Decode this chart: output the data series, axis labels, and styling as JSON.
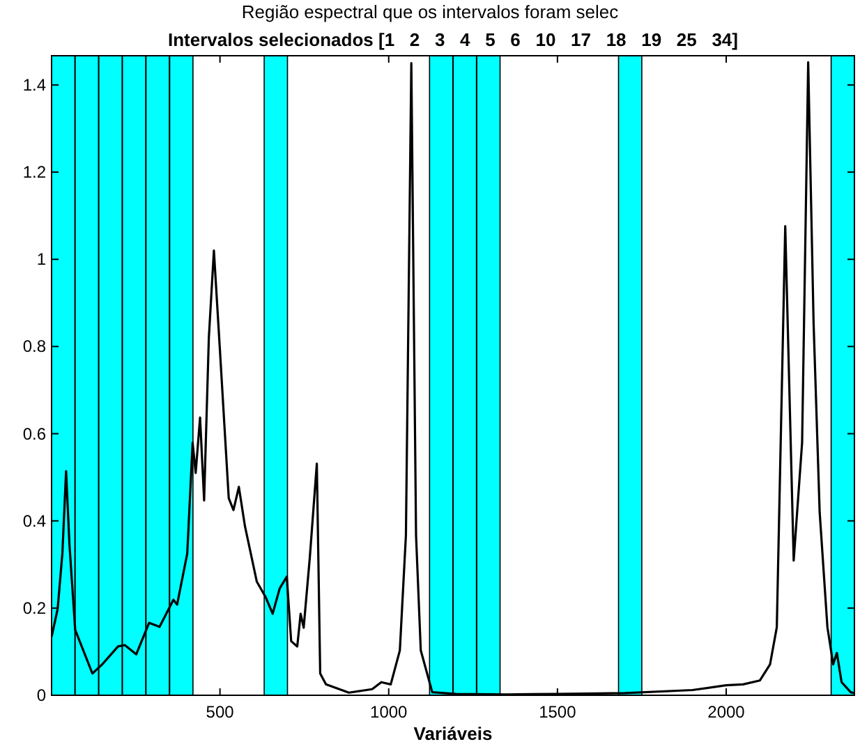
{
  "chart_data": {
    "type": "line",
    "title": "Intervalos selecionados [1   2   3   4   5   6   10   17   18   19   25   34]",
    "xlabel": "Variáveis",
    "annotations": [
      "Região espectral que os intervalos foram selec"
    ],
    "xlim": [
      1,
      2380
    ],
    "ylim": [
      0,
      1.467
    ],
    "xticks": [
      500,
      1000,
      1500,
      2000
    ],
    "yticks": [
      0,
      0.2,
      0.4,
      0.6,
      0.8,
      1,
      1.2,
      1.4
    ],
    "grid": false,
    "bands": [
      {
        "axis": "x",
        "from": 1,
        "to": 70,
        "color": "#00ffff"
      },
      {
        "axis": "x",
        "from": 71,
        "to": 140,
        "color": "#00ffff"
      },
      {
        "axis": "x",
        "from": 141,
        "to": 210,
        "color": "#00ffff"
      },
      {
        "axis": "x",
        "from": 211,
        "to": 280,
        "color": "#00ffff"
      },
      {
        "axis": "x",
        "from": 281,
        "to": 350,
        "color": "#00ffff"
      },
      {
        "axis": "x",
        "from": 351,
        "to": 420,
        "color": "#00ffff"
      },
      {
        "axis": "x",
        "from": 631,
        "to": 700,
        "color": "#00ffff"
      },
      {
        "axis": "x",
        "from": 1121,
        "to": 1190,
        "color": "#00ffff"
      },
      {
        "axis": "x",
        "from": 1191,
        "to": 1260,
        "color": "#00ffff"
      },
      {
        "axis": "x",
        "from": 1261,
        "to": 1330,
        "color": "#00ffff"
      },
      {
        "axis": "x",
        "from": 1681,
        "to": 1750,
        "color": "#00ffff"
      },
      {
        "axis": "x",
        "from": 2311,
        "to": 2380,
        "color": "#00ffff"
      }
    ],
    "series": [
      {
        "color": "#000000",
        "x": [
          1,
          19,
          33,
          44,
          54,
          71,
          95,
          122,
          150,
          198,
          218,
          252,
          290,
          321,
          362,
          373,
          403,
          419,
          428,
          441,
          453,
          467,
          482,
          500,
          526,
          540,
          556,
          574,
          609,
          636,
          656,
          677,
          698,
          711,
          729,
          739,
          748,
          766,
          787,
          797,
          814,
          882,
          951,
          978,
          1006,
          1033,
          1051,
          1067,
          1081,
          1095,
          1129,
          1200,
          1350,
          1500,
          1700,
          1900,
          2000,
          2050,
          2100,
          2130,
          2150,
          2175,
          2200,
          2225,
          2243,
          2259,
          2277,
          2300,
          2317,
          2328,
          2342,
          2369,
          2378
        ],
        "values": [
          0.134,
          0.198,
          0.325,
          0.514,
          0.346,
          0.15,
          0.103,
          0.05,
          0.07,
          0.112,
          0.115,
          0.094,
          0.166,
          0.157,
          0.219,
          0.208,
          0.325,
          0.579,
          0.51,
          0.637,
          0.447,
          0.82,
          1.02,
          0.79,
          0.452,
          0.425,
          0.478,
          0.388,
          0.261,
          0.224,
          0.187,
          0.245,
          0.272,
          0.124,
          0.112,
          0.187,
          0.155,
          0.314,
          0.531,
          0.05,
          0.025,
          0.006,
          0.014,
          0.03,
          0.025,
          0.103,
          0.367,
          1.45,
          0.367,
          0.103,
          0.007,
          0.003,
          0.002,
          0.003,
          0.005,
          0.012,
          0.023,
          0.025,
          0.034,
          0.071,
          0.156,
          1.076,
          0.309,
          0.58,
          1.452,
          0.854,
          0.42,
          0.156,
          0.071,
          0.097,
          0.03,
          0.007,
          0.005
        ]
      }
    ]
  }
}
